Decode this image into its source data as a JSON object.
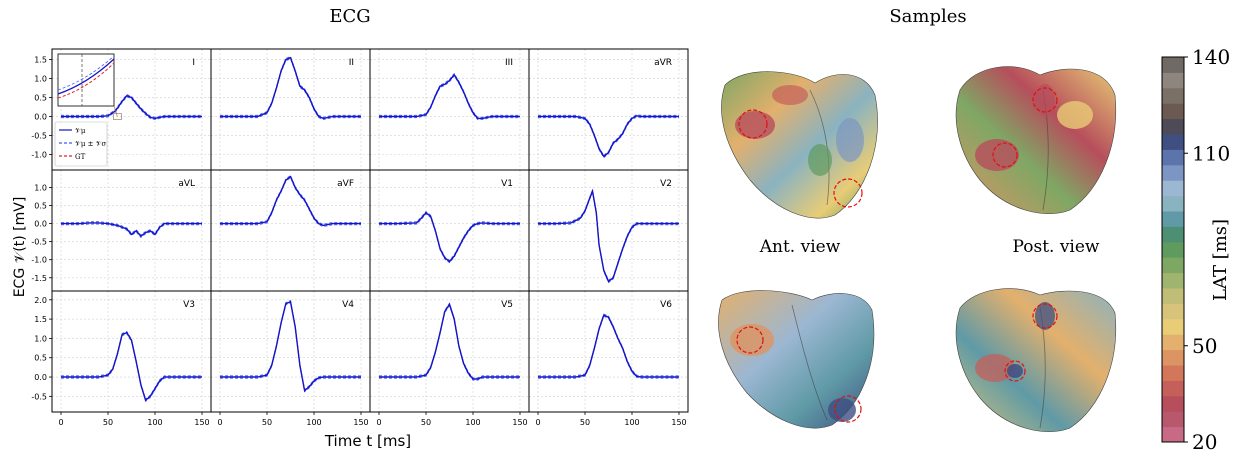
{
  "ecg_title": "ECG",
  "samples_title": "Samples",
  "xlabel": "Time t [ms]",
  "ylabel": "ECG 𝒱(t) [mV]",
  "ant_view": "Ant. view",
  "post_view": "Post. view",
  "legend": [
    "𝒱μ",
    "𝒱μ ± 𝒱σ",
    "GT"
  ],
  "colorbar": {
    "label": "LAT [ms]",
    "ticks": [
      "140",
      "110",
      "50",
      "20"
    ],
    "range": [
      20,
      140
    ],
    "colors": [
      "#c86a86",
      "#b8586c",
      "#b74e5c",
      "#c55f5a",
      "#d3775b",
      "#dd9463",
      "#e3b06d",
      "#e8cc76",
      "#d8c37a",
      "#c0bd76",
      "#9fb46e",
      "#7fa764",
      "#5f9a5f",
      "#4d8f73",
      "#5f9aa6",
      "#8ab3c0",
      "#9cb7d2",
      "#7c95c2",
      "#5b74ab",
      "#3f4f82",
      "#4e4a58",
      "#6a5a52",
      "#7b7066",
      "#8d857e",
      "#6f6a66"
    ]
  },
  "chart_data": {
    "type": "line",
    "xlim": [
      0,
      150
    ],
    "xticks": [
      0,
      50,
      100,
      150
    ],
    "series_names": [
      "𝒱μ",
      "𝒱μ ± 𝒱σ",
      "GT"
    ],
    "panels": [
      {
        "lead": "I",
        "ylim": [
          -1.25,
          1.7
        ],
        "yticks": [
          -1.0,
          -0.5,
          0.0,
          0.5,
          1.0,
          1.5
        ],
        "x": [
          0,
          20,
          40,
          50,
          58,
          65,
          70,
          75,
          80,
          85,
          90,
          95,
          100,
          105,
          110,
          120,
          130,
          150
        ],
        "y": [
          0,
          0,
          0,
          0.02,
          0.15,
          0.4,
          0.55,
          0.5,
          0.35,
          0.2,
          0.08,
          -0.02,
          -0.05,
          -0.02,
          0,
          0,
          0,
          0
        ]
      },
      {
        "lead": "II",
        "ylim": [
          -1.25,
          1.7
        ],
        "yticks": [],
        "x": [
          0,
          20,
          40,
          50,
          55,
          60,
          65,
          70,
          75,
          80,
          85,
          90,
          95,
          100,
          105,
          110,
          120,
          150
        ],
        "y": [
          0,
          0,
          0,
          0.1,
          0.35,
          0.75,
          1.2,
          1.5,
          1.55,
          1.2,
          0.8,
          0.7,
          0.5,
          0.2,
          0,
          -0.05,
          0,
          0
        ]
      },
      {
        "lead": "III",
        "ylim": [
          -1.25,
          1.7
        ],
        "yticks": [],
        "x": [
          0,
          20,
          40,
          50,
          55,
          60,
          65,
          70,
          75,
          80,
          85,
          90,
          95,
          100,
          105,
          110,
          120,
          150
        ],
        "y": [
          0,
          0,
          0,
          0.05,
          0.25,
          0.55,
          0.8,
          0.85,
          0.95,
          1.1,
          0.9,
          0.65,
          0.35,
          0.1,
          -0.05,
          -0.05,
          0,
          0
        ]
      },
      {
        "lead": "aVR",
        "ylim": [
          -1.25,
          1.7
        ],
        "yticks": [],
        "x": [
          0,
          20,
          40,
          50,
          55,
          60,
          65,
          70,
          75,
          80,
          85,
          90,
          95,
          100,
          105,
          110,
          120,
          150
        ],
        "y": [
          0,
          0,
          0,
          -0.05,
          -0.2,
          -0.5,
          -0.85,
          -1.05,
          -0.95,
          -0.7,
          -0.6,
          -0.45,
          -0.2,
          -0.05,
          0.02,
          0,
          0,
          0
        ]
      },
      {
        "lead": "aVL",
        "ylim": [
          -1.7,
          1.4
        ],
        "yticks": [
          -1.5,
          -1.0,
          -0.5,
          0.0,
          0.5,
          1.0
        ],
        "x": [
          0,
          20,
          30,
          40,
          50,
          60,
          70,
          75,
          80,
          85,
          90,
          95,
          100,
          105,
          110,
          120,
          150
        ],
        "y": [
          0,
          0,
          0.02,
          0.02,
          0,
          -0.05,
          -0.15,
          -0.3,
          -0.2,
          -0.35,
          -0.25,
          -0.2,
          -0.3,
          -0.1,
          0,
          0,
          0
        ]
      },
      {
        "lead": "aVF",
        "ylim": [
          -1.7,
          1.4
        ],
        "yticks": [],
        "x": [
          0,
          20,
          40,
          50,
          55,
          60,
          65,
          70,
          75,
          80,
          85,
          90,
          95,
          100,
          105,
          110,
          120,
          150
        ],
        "y": [
          0,
          0,
          0,
          0.05,
          0.3,
          0.65,
          0.9,
          1.2,
          1.3,
          1.0,
          0.8,
          0.65,
          0.4,
          0.15,
          0,
          -0.05,
          0,
          0
        ]
      },
      {
        "lead": "V1",
        "ylim": [
          -1.7,
          1.4
        ],
        "yticks": [],
        "x": [
          0,
          20,
          40,
          45,
          50,
          55,
          60,
          65,
          70,
          75,
          80,
          85,
          90,
          95,
          100,
          105,
          110,
          120,
          150
        ],
        "y": [
          0,
          0,
          0.02,
          0.15,
          0.3,
          0.2,
          -0.2,
          -0.7,
          -0.95,
          -1.05,
          -0.9,
          -0.65,
          -0.4,
          -0.2,
          -0.05,
          0,
          0.02,
          0,
          0
        ]
      },
      {
        "lead": "V2",
        "ylim": [
          -1.7,
          1.4
        ],
        "yticks": [],
        "x": [
          0,
          20,
          35,
          45,
          50,
          55,
          58,
          62,
          65,
          70,
          75,
          80,
          85,
          90,
          95,
          100,
          105,
          110,
          120,
          150
        ],
        "y": [
          0,
          0,
          0.02,
          0.15,
          0.35,
          0.7,
          0.9,
          0.3,
          -0.6,
          -1.3,
          -1.6,
          -1.5,
          -1.1,
          -0.7,
          -0.35,
          -0.1,
          0,
          0,
          0,
          0
        ]
      },
      {
        "lead": "V3",
        "ylim": [
          -0.75,
          2.15
        ],
        "yticks": [
          -0.5,
          0.0,
          0.5,
          1.0,
          1.5,
          2.0
        ],
        "x": [
          0,
          20,
          40,
          50,
          55,
          60,
          65,
          70,
          75,
          80,
          85,
          90,
          95,
          100,
          105,
          110,
          120,
          150
        ],
        "y": [
          0,
          0,
          0,
          0.05,
          0.2,
          0.6,
          1.1,
          1.15,
          0.95,
          0.4,
          -0.2,
          -0.6,
          -0.5,
          -0.3,
          -0.1,
          0,
          0,
          0
        ]
      },
      {
        "lead": "V4",
        "ylim": [
          -0.75,
          2.15
        ],
        "yticks": [],
        "x": [
          0,
          20,
          40,
          50,
          55,
          60,
          65,
          70,
          75,
          80,
          85,
          90,
          95,
          100,
          105,
          110,
          120,
          150
        ],
        "y": [
          0,
          0,
          0,
          0.05,
          0.3,
          0.8,
          1.4,
          1.9,
          1.95,
          1.3,
          0.3,
          -0.35,
          -0.25,
          -0.1,
          -0.02,
          0,
          0,
          0
        ]
      },
      {
        "lead": "V5",
        "ylim": [
          -0.75,
          2.15
        ],
        "yticks": [],
        "x": [
          0,
          20,
          40,
          50,
          55,
          60,
          65,
          70,
          75,
          80,
          85,
          90,
          95,
          100,
          105,
          110,
          120,
          150
        ],
        "y": [
          0,
          0,
          0,
          0.05,
          0.25,
          0.65,
          1.15,
          1.7,
          1.88,
          1.5,
          0.8,
          0.35,
          0.1,
          -0.05,
          -0.05,
          0,
          0,
          0
        ]
      },
      {
        "lead": "V6",
        "ylim": [
          -0.75,
          2.15
        ],
        "yticks": [],
        "x": [
          0,
          20,
          40,
          50,
          55,
          60,
          65,
          70,
          75,
          80,
          85,
          90,
          95,
          100,
          105,
          110,
          120,
          150
        ],
        "y": [
          0,
          0,
          0,
          0.05,
          0.3,
          0.75,
          1.25,
          1.6,
          1.55,
          1.3,
          1.0,
          0.75,
          0.4,
          0.15,
          0.02,
          0,
          0,
          0
        ]
      }
    ]
  }
}
